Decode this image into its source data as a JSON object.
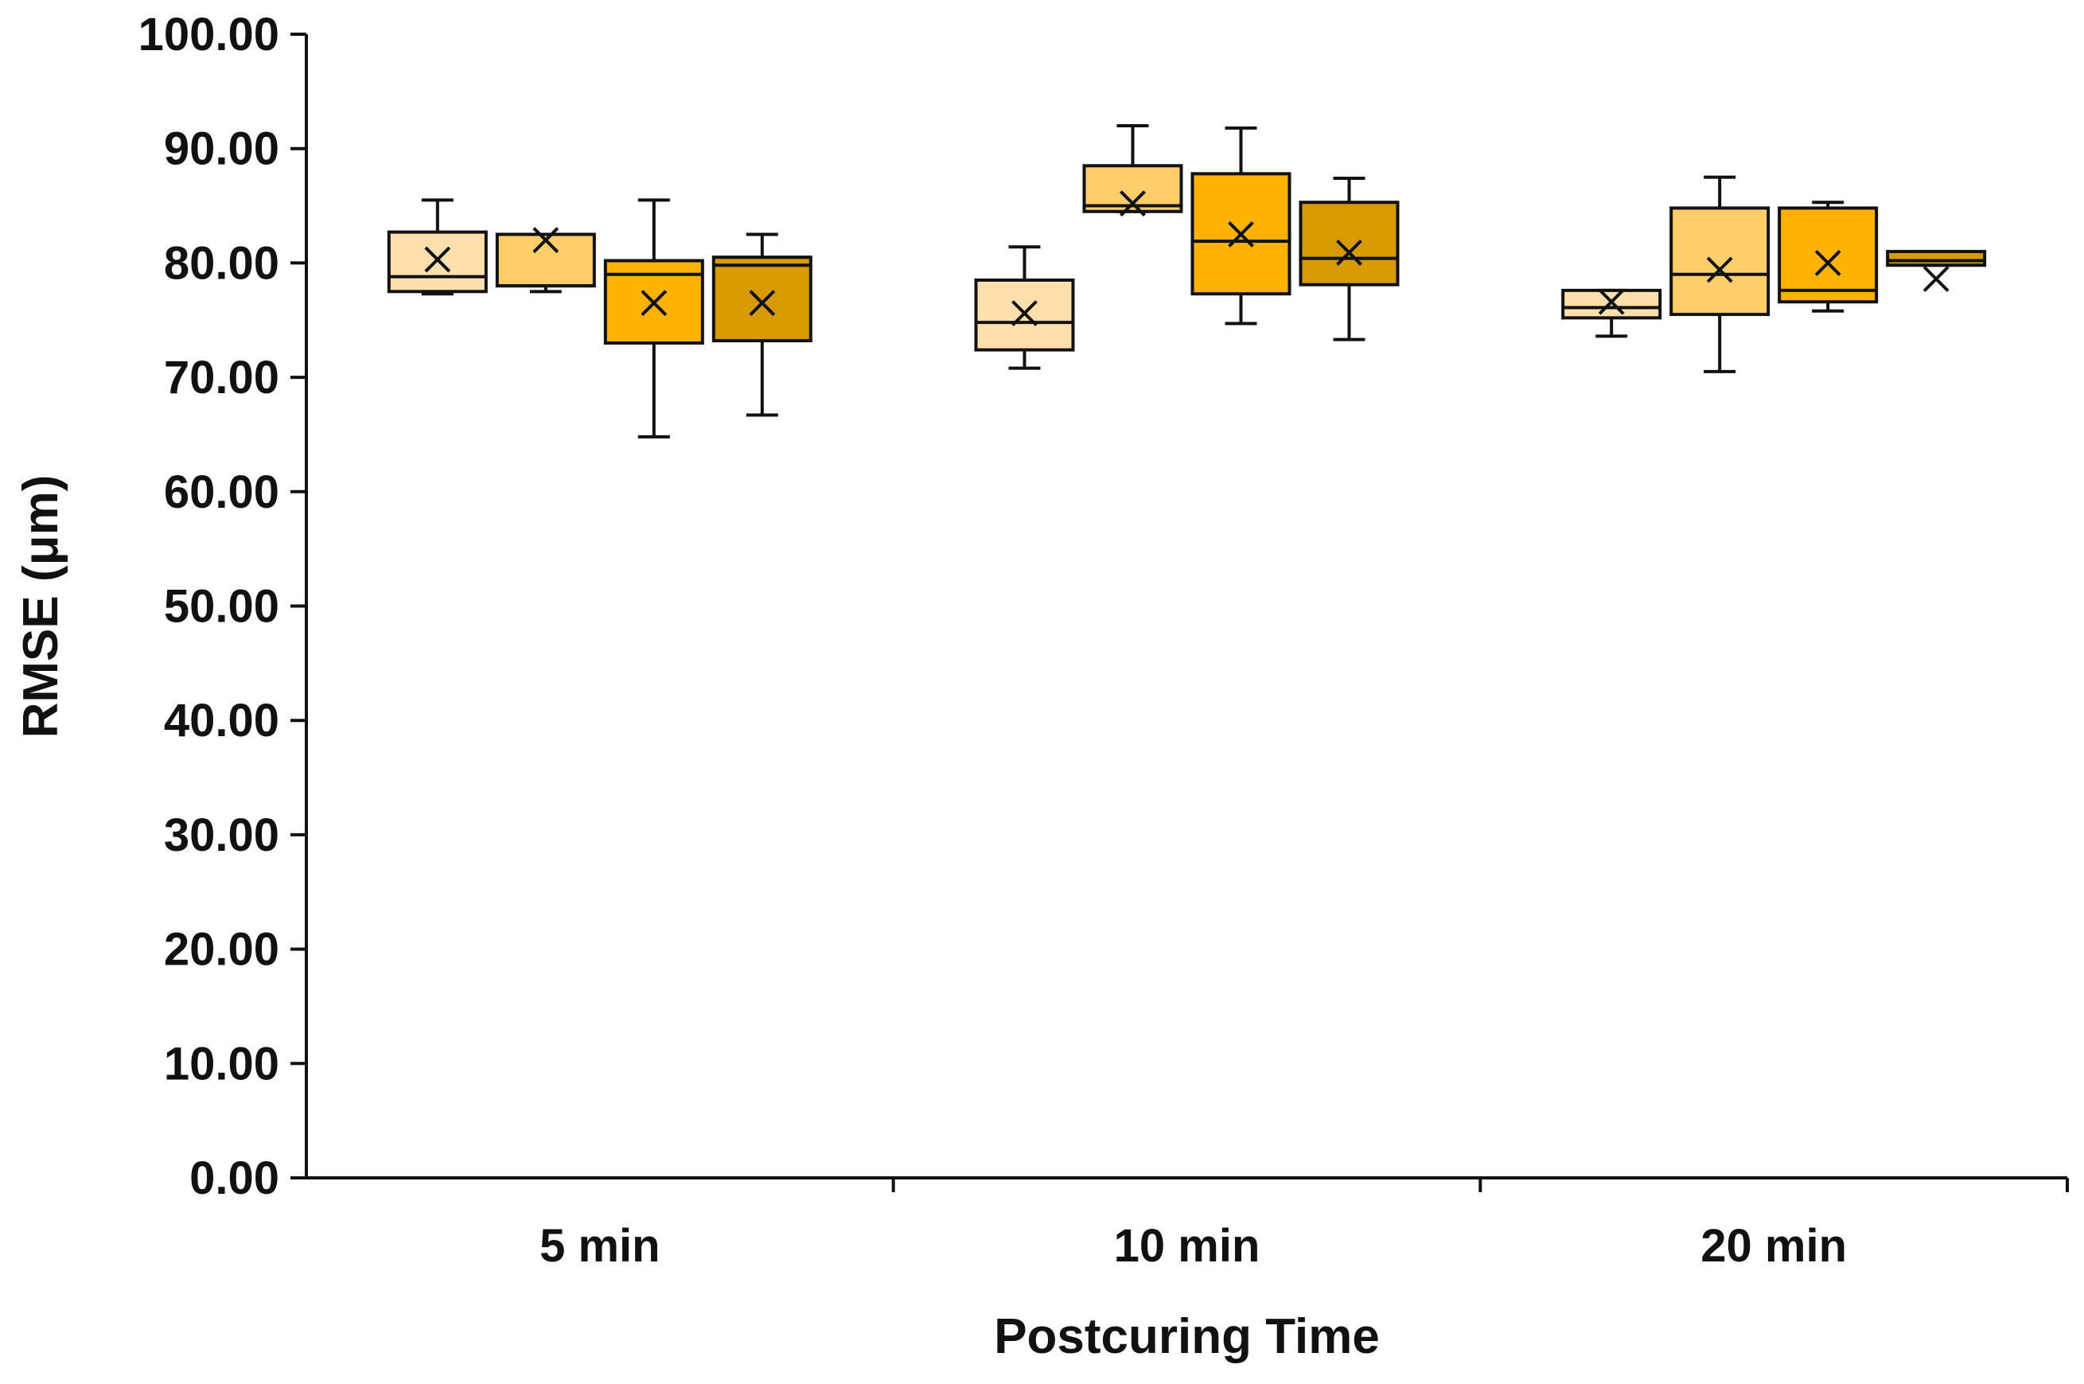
{
  "chart_data": {
    "type": "box",
    "title": "",
    "xlabel": "Postcuring Time",
    "ylabel": "RMSE (μm)",
    "ylim": [
      0,
      100
    ],
    "yticks": [
      "0.00",
      "10.00",
      "20.00",
      "30.00",
      "40.00",
      "50.00",
      "60.00",
      "70.00",
      "80.00",
      "90.00",
      "100.00"
    ],
    "categories": [
      "5 min",
      "10 min",
      "20 min"
    ],
    "series_colors": [
      "#FFE0AD",
      "#FFCE6A",
      "#FFB300",
      "#D79A00"
    ],
    "groups": [
      {
        "category": "5 min",
        "boxes": [
          {
            "min": 77.3,
            "q1": 77.5,
            "median": 78.8,
            "q3": 82.7,
            "max": 85.5,
            "mean": 80.3
          },
          {
            "min": 77.5,
            "q1": 78.0,
            "median": 78.0,
            "q3": 82.5,
            "max": 82.5,
            "mean": 82.0
          },
          {
            "min": 64.8,
            "q1": 73.0,
            "median": 79.0,
            "q3": 80.2,
            "max": 85.5,
            "mean": 76.5
          },
          {
            "min": 66.7,
            "q1": 73.2,
            "median": 79.8,
            "q3": 80.5,
            "max": 82.5,
            "mean": 76.5
          }
        ]
      },
      {
        "category": "10 min",
        "boxes": [
          {
            "min": 70.8,
            "q1": 72.4,
            "median": 74.8,
            "q3": 78.5,
            "max": 81.4,
            "mean": 75.6
          },
          {
            "min": 84.5,
            "q1": 84.5,
            "median": 85.0,
            "q3": 88.5,
            "max": 92.0,
            "mean": 85.2
          },
          {
            "min": 74.7,
            "q1": 77.3,
            "median": 81.9,
            "q3": 87.8,
            "max": 91.8,
            "mean": 82.5
          },
          {
            "min": 73.3,
            "q1": 78.1,
            "median": 80.4,
            "q3": 85.3,
            "max": 87.4,
            "mean": 80.9
          }
        ]
      },
      {
        "category": "20 min",
        "boxes": [
          {
            "min": 73.6,
            "q1": 75.2,
            "median": 76.1,
            "q3": 77.6,
            "max": 77.6,
            "mean": 76.6
          },
          {
            "min": 70.5,
            "q1": 75.5,
            "median": 79.0,
            "q3": 84.8,
            "max": 87.5,
            "mean": 79.4
          },
          {
            "min": 75.8,
            "q1": 76.6,
            "median": 77.6,
            "q3": 84.8,
            "max": 85.3,
            "mean": 80.0
          },
          {
            "min": 79.8,
            "q1": 79.8,
            "median": 80.2,
            "q3": 81.0,
            "max": 81.0,
            "mean": 78.6
          }
        ]
      }
    ]
  }
}
